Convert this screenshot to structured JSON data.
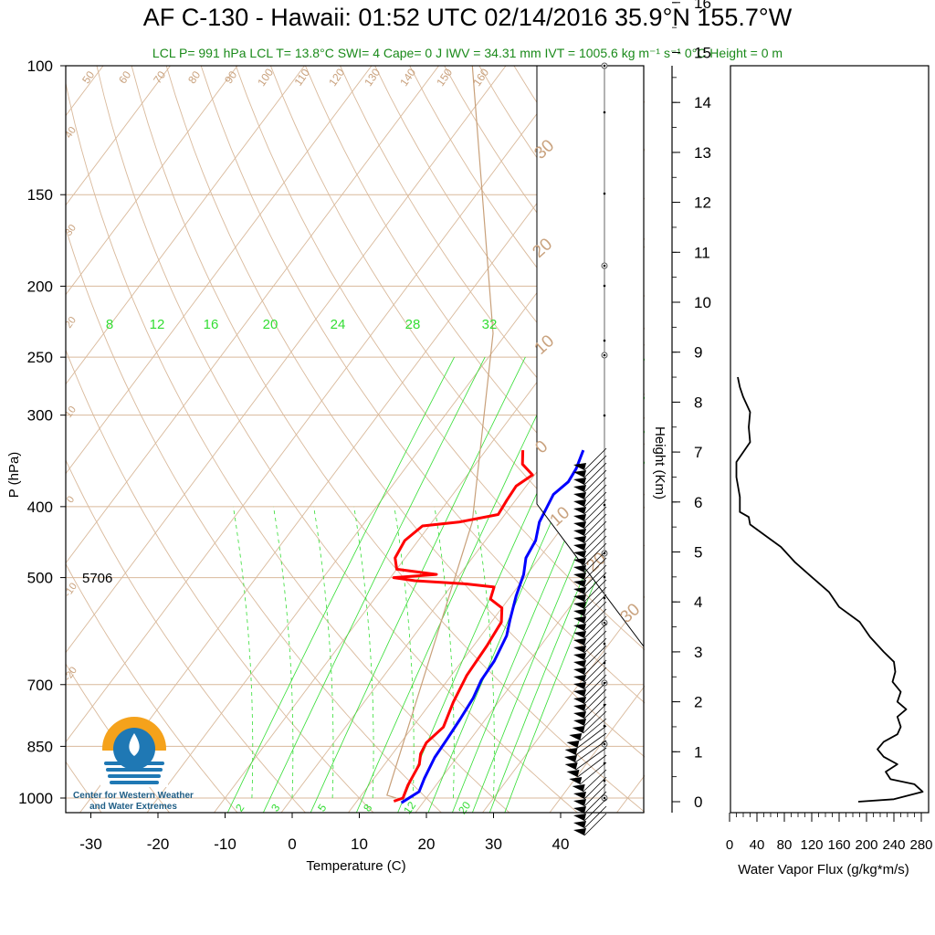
{
  "header": {
    "title": "AF C-130 - Hawaii: 01:52 UTC 02/14/2016  35.9°N 155.7°W",
    "subtitle": "LCL P= 991 hPa  LCL T= 13.8°C  SWI= 4  Cape= 0 J  IWV = 34.31 mm  IVT = 1005.6 kg m⁻¹ s⁻¹  0°C Height = 0 m"
  },
  "logo": {
    "line1": "Center for Western Weather",
    "line2": "and Water Extremes",
    "colors": {
      "orange": "#f5a21b",
      "blue": "#1f78b4",
      "dark": "#1f5e86"
    }
  },
  "annotation": {
    "height_500": "5706"
  },
  "colors": {
    "temperature": "#ff0000",
    "dewpoint_line": "#0000ff",
    "isotherm": "#d9b99b",
    "adiabat_label": "#c9a27e",
    "mixing_ratio": "#33dd33",
    "parcel": "#c8a07a",
    "flux": "#000000"
  },
  "chart_data": [
    {
      "type": "line",
      "name": "skew-t",
      "xlabel": "Temperature (C)",
      "ylabel": "P (hPa)",
      "x_ticks": [
        "-30",
        "-20",
        "-10",
        "0",
        "10",
        "20",
        "30",
        "40"
      ],
      "y_ticks": [
        "100",
        "150",
        "200",
        "250",
        "300",
        "400",
        "500",
        "700",
        "850",
        "1000"
      ],
      "y_scale": "log",
      "ylim": [
        1050,
        100
      ],
      "xlim": [
        -35,
        47
      ],
      "mixing_ratio_labels_top": [
        "8",
        "12",
        "16",
        "20",
        "24",
        "28",
        "32"
      ],
      "mixing_ratio_labels_bottom": [
        "2",
        "3",
        "5",
        "8",
        "12",
        "20"
      ],
      "dry_adiabat_labels_top": [
        "50",
        "60",
        "70",
        "80",
        "90",
        "100",
        "110",
        "120",
        "130",
        "140",
        "150",
        "160"
      ],
      "dry_adiabat_labels_left": [
        "40",
        "30",
        "20",
        "10",
        "0",
        "-10",
        "-20"
      ],
      "moist_adiabat_labels": [
        "30",
        "20",
        "10",
        "0",
        "10",
        "20",
        "30"
      ],
      "series": [
        {
          "key": "temperature",
          "points": [
            [
              -4.5,
              335
            ],
            [
              -3,
              350
            ],
            [
              -0.3,
              362
            ],
            [
              -1.5,
              375
            ],
            [
              -1.3,
              392
            ],
            [
              -1.0,
              410
            ],
            [
              -6,
              420
            ],
            [
              -11,
              425
            ],
            [
              -12,
              445
            ],
            [
              -11.5,
              470
            ],
            [
              -10,
              487
            ],
            [
              -3.5,
              495
            ],
            [
              -9.5,
              500
            ],
            [
              -6,
              505
            ],
            [
              2,
              510
            ],
            [
              6.5,
              515
            ],
            [
              7.3,
              535
            ],
            [
              10.0,
              550
            ],
            [
              11.5,
              575
            ],
            [
              12.0,
              620
            ],
            [
              12.3,
              680
            ],
            [
              13.3,
              740
            ],
            [
              14.6,
              800
            ],
            [
              13.8,
              840
            ],
            [
              14.2,
              870
            ],
            [
              15.2,
              900
            ],
            [
              15.8,
              960
            ],
            [
              16.5,
              1000
            ],
            [
              15.5,
              1010
            ]
          ]
        },
        {
          "key": "dewpoint",
          "points": [
            [
              4.5,
              335
            ],
            [
              5.5,
              355
            ],
            [
              5.8,
              370
            ],
            [
              5.0,
              385
            ],
            [
              6.0,
              420
            ],
            [
              7.5,
              445
            ],
            [
              8.0,
              470
            ],
            [
              9.5,
              495
            ],
            [
              10.8,
              530
            ],
            [
              12.5,
              570
            ],
            [
              13.8,
              600
            ],
            [
              14.8,
              650
            ],
            [
              15.0,
              690
            ],
            [
              15.8,
              730
            ],
            [
              16.2,
              780
            ],
            [
              16.5,
              830
            ],
            [
              16.7,
              880
            ],
            [
              17.5,
              940
            ],
            [
              18.2,
              980
            ],
            [
              16.8,
              1015
            ]
          ]
        },
        {
          "key": "parcel",
          "points": [
            [
              15.5,
              1000
            ],
            [
              13.8,
              991
            ],
            [
              -4,
              420
            ],
            [
              -22,
              232
            ],
            [
              -55,
              100
            ]
          ]
        }
      ]
    },
    {
      "type": "line",
      "name": "water-vapor-flux",
      "xlabel": "Water Vapor Flux (g/kg*m/s)",
      "ylabel": "Height (Km)",
      "x_ticks": [
        "0",
        "40",
        "80",
        "120",
        "160",
        "200",
        "240",
        "280"
      ],
      "y_ticks": [
        "0",
        "1",
        "2",
        "3",
        "4",
        "5",
        "6",
        "7",
        "8",
        "9",
        "10",
        "11",
        "12",
        "13",
        "14",
        "15",
        "16"
      ],
      "xlim": [
        0,
        290
      ],
      "ylim": [
        -0.3,
        16.5
      ],
      "series": [
        {
          "name": "flux",
          "points": [
            [
              188,
              0.0
            ],
            [
              240,
              0.05
            ],
            [
              282,
              0.2
            ],
            [
              270,
              0.35
            ],
            [
              235,
              0.45
            ],
            [
              228,
              0.6
            ],
            [
              245,
              0.75
            ],
            [
              225,
              0.9
            ],
            [
              216,
              1.05
            ],
            [
              225,
              1.2
            ],
            [
              245,
              1.35
            ],
            [
              250,
              1.5
            ],
            [
              245,
              1.7
            ],
            [
              258,
              1.85
            ],
            [
              245,
              2.0
            ],
            [
              250,
              2.2
            ],
            [
              238,
              2.4
            ],
            [
              242,
              2.6
            ],
            [
              240,
              2.8
            ],
            [
              225,
              3.0
            ],
            [
              205,
              3.3
            ],
            [
              190,
              3.6
            ],
            [
              160,
              3.9
            ],
            [
              145,
              4.2
            ],
            [
              120,
              4.5
            ],
            [
              95,
              4.8
            ],
            [
              75,
              5.1
            ],
            [
              55,
              5.3
            ],
            [
              40,
              5.45
            ],
            [
              30,
              5.55
            ],
            [
              28,
              5.7
            ],
            [
              15,
              5.8
            ],
            [
              15,
              6.1
            ],
            [
              10,
              6.5
            ],
            [
              10,
              6.8
            ],
            [
              20,
              7.0
            ],
            [
              30,
              7.2
            ],
            [
              28,
              7.5
            ],
            [
              30,
              7.8
            ],
            [
              20,
              8.1
            ],
            [
              15,
              8.3
            ],
            [
              12,
              8.5
            ]
          ]
        }
      ]
    }
  ]
}
